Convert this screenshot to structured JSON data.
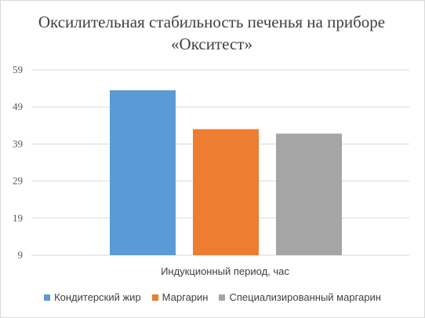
{
  "chart_data": {
    "type": "bar",
    "title": "Оксилительная стабильность печенья на приборе «Окситест»",
    "xlabel": "Индукционный период, час",
    "ylabel": "",
    "yticks": [
      9,
      19,
      29,
      39,
      49,
      59
    ],
    "ylim": [
      9,
      59
    ],
    "grid": true,
    "legend": "bottom",
    "series": [
      {
        "name": "Кондитерский жир",
        "value": 53.5,
        "color": "#5b9bd5"
      },
      {
        "name": "Маргарин",
        "value": 43,
        "color": "#ed7d31"
      },
      {
        "name": "Специализированный маргарин",
        "value": 41.8,
        "color": "#a5a5a5"
      }
    ]
  }
}
